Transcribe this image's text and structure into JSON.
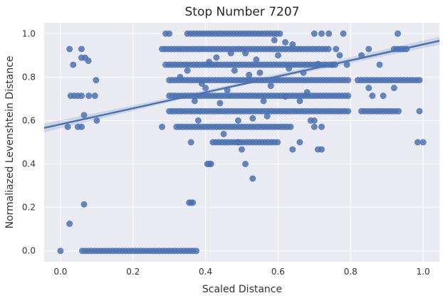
{
  "chart_data": {
    "type": "scatter",
    "title": "Stop Number 7207",
    "xlabel": "Scaled Distance",
    "ylabel": "Normaliazed Levenshtein Distance",
    "xlim": [
      -0.045,
      1.045
    ],
    "ylim": [
      -0.05,
      1.05
    ],
    "xticks": [
      0.0,
      0.2,
      0.4,
      0.6,
      0.8,
      1.0
    ],
    "xtick_labels": [
      "0.0",
      "0.2",
      "0.4",
      "0.6",
      "0.8",
      "1.0"
    ],
    "yticks": [
      0.0,
      0.2,
      0.4,
      0.6,
      0.8,
      1.0
    ],
    "ytick_labels": [
      "0.0",
      "0.2",
      "0.4",
      "0.6",
      "0.8",
      "1.0"
    ],
    "grid": true,
    "background_color": "#eaeaf2",
    "point_color": "#4c72b0",
    "regression_line": {
      "x": [
        -0.045,
        1.045
      ],
      "y": [
        0.566,
        0.967
      ]
    },
    "confidence_band": {
      "x": [
        -0.045,
        0.4,
        1.045
      ],
      "lower": [
        0.546,
        0.725,
        0.949
      ],
      "upper": [
        0.586,
        0.739,
        0.985
      ]
    },
    "bands": [
      {
        "y": 0.0,
        "segments": [
          [
            0.06,
            0.38
          ]
        ]
      },
      {
        "y": 0.643,
        "segments": [
          [
            0.3,
            0.8
          ],
          [
            0.83,
            0.94
          ]
        ]
      },
      {
        "y": 0.786,
        "segments": [
          [
            0.3,
            0.8
          ],
          [
            0.82,
            0.99
          ]
        ]
      },
      {
        "y": 0.857,
        "segments": [
          [
            0.29,
            0.76
          ]
        ]
      },
      {
        "y": 0.929,
        "segments": [
          [
            0.28,
            0.74
          ],
          [
            0.92,
            0.96
          ]
        ]
      },
      {
        "y": 0.571,
        "segments": [
          [
            0.32,
            0.64
          ]
        ]
      },
      {
        "y": 0.714,
        "segments": [
          [
            0.3,
            0.8
          ]
        ]
      },
      {
        "y": 1.0,
        "segments": [
          [
            0.35,
            0.61
          ]
        ]
      },
      {
        "y": 0.5,
        "segments": [
          [
            0.42,
            0.6
          ]
        ]
      }
    ],
    "points": [
      {
        "x": 0.0,
        "y": 0.0
      },
      {
        "x": 0.025,
        "y": 0.125
      },
      {
        "x": 0.065,
        "y": 0.214
      },
      {
        "x": 0.02,
        "y": 0.571
      },
      {
        "x": 0.048,
        "y": 0.571
      },
      {
        "x": 0.058,
        "y": 0.571
      },
      {
        "x": 0.065,
        "y": 0.625
      },
      {
        "x": 0.1,
        "y": 0.6
      },
      {
        "x": 0.028,
        "y": 0.714
      },
      {
        "x": 0.038,
        "y": 0.714
      },
      {
        "x": 0.048,
        "y": 0.714
      },
      {
        "x": 0.058,
        "y": 0.714
      },
      {
        "x": 0.078,
        "y": 0.714
      },
      {
        "x": 0.095,
        "y": 0.714
      },
      {
        "x": 0.098,
        "y": 0.786
      },
      {
        "x": 0.035,
        "y": 0.857
      },
      {
        "x": 0.058,
        "y": 0.889
      },
      {
        "x": 0.068,
        "y": 0.889
      },
      {
        "x": 0.077,
        "y": 0.875
      },
      {
        "x": 0.025,
        "y": 0.929
      },
      {
        "x": 0.058,
        "y": 0.929
      },
      {
        "x": 0.36,
        "y": 0.222
      },
      {
        "x": 0.355,
        "y": 0.222
      },
      {
        "x": 0.365,
        "y": 0.222
      },
      {
        "x": 0.405,
        "y": 0.4
      },
      {
        "x": 0.41,
        "y": 0.4
      },
      {
        "x": 0.415,
        "y": 0.4
      },
      {
        "x": 0.51,
        "y": 0.4
      },
      {
        "x": 0.53,
        "y": 0.333
      },
      {
        "x": 0.49,
        "y": 0.5
      },
      {
        "x": 0.5,
        "y": 0.467
      },
      {
        "x": 0.36,
        "y": 0.5
      },
      {
        "x": 0.45,
        "y": 0.538
      },
      {
        "x": 0.38,
        "y": 0.6
      },
      {
        "x": 0.28,
        "y": 0.571
      },
      {
        "x": 0.7,
        "y": 0.571
      },
      {
        "x": 0.72,
        "y": 0.571
      },
      {
        "x": 0.66,
        "y": 0.5
      },
      {
        "x": 0.64,
        "y": 0.467
      },
      {
        "x": 0.71,
        "y": 0.467
      },
      {
        "x": 0.72,
        "y": 0.467
      },
      {
        "x": 0.69,
        "y": 0.6
      },
      {
        "x": 0.7,
        "y": 0.6
      },
      {
        "x": 0.985,
        "y": 0.5
      },
      {
        "x": 1.0,
        "y": 0.5
      },
      {
        "x": 0.99,
        "y": 0.643
      },
      {
        "x": 0.88,
        "y": 0.857
      },
      {
        "x": 0.86,
        "y": 0.714
      },
      {
        "x": 0.89,
        "y": 0.714
      },
      {
        "x": 0.92,
        "y": 0.75
      },
      {
        "x": 0.85,
        "y": 0.75
      },
      {
        "x": 0.75,
        "y": 0.857
      },
      {
        "x": 0.79,
        "y": 0.857
      },
      {
        "x": 0.77,
        "y": 0.9
      },
      {
        "x": 0.83,
        "y": 0.9
      },
      {
        "x": 0.85,
        "y": 0.929
      },
      {
        "x": 0.76,
        "y": 0.929
      },
      {
        "x": 0.74,
        "y": 1.0
      },
      {
        "x": 0.78,
        "y": 1.0
      },
      {
        "x": 0.7,
        "y": 1.0
      },
      {
        "x": 0.72,
        "y": 1.0
      },
      {
        "x": 0.93,
        "y": 1.0
      },
      {
        "x": 0.3,
        "y": 1.0
      },
      {
        "x": 0.29,
        "y": 1.0
      },
      {
        "x": 0.64,
        "y": 0.95
      },
      {
        "x": 0.62,
        "y": 0.96
      },
      {
        "x": 0.59,
        "y": 0.97
      },
      {
        "x": 0.41,
        "y": 0.87
      },
      {
        "x": 0.43,
        "y": 0.89
      },
      {
        "x": 0.47,
        "y": 0.91
      },
      {
        "x": 0.55,
        "y": 0.82
      },
      {
        "x": 0.52,
        "y": 0.81
      },
      {
        "x": 0.48,
        "y": 0.83
      },
      {
        "x": 0.58,
        "y": 0.76
      },
      {
        "x": 0.46,
        "y": 0.74
      },
      {
        "x": 0.4,
        "y": 0.75
      },
      {
        "x": 0.56,
        "y": 0.69
      },
      {
        "x": 0.44,
        "y": 0.68
      },
      {
        "x": 0.37,
        "y": 0.69
      },
      {
        "x": 0.62,
        "y": 0.71
      },
      {
        "x": 0.66,
        "y": 0.69
      },
      {
        "x": 0.68,
        "y": 0.73
      },
      {
        "x": 0.53,
        "y": 0.61
      },
      {
        "x": 0.49,
        "y": 0.6
      },
      {
        "x": 0.57,
        "y": 0.62
      },
      {
        "x": 0.51,
        "y": 0.91
      },
      {
        "x": 0.54,
        "y": 0.88
      },
      {
        "x": 0.6,
        "y": 0.9
      },
      {
        "x": 0.33,
        "y": 0.8
      },
      {
        "x": 0.35,
        "y": 0.83
      },
      {
        "x": 0.39,
        "y": 0.77
      },
      {
        "x": 0.63,
        "y": 0.84
      },
      {
        "x": 0.67,
        "y": 0.82
      },
      {
        "x": 0.71,
        "y": 0.86
      }
    ]
  }
}
